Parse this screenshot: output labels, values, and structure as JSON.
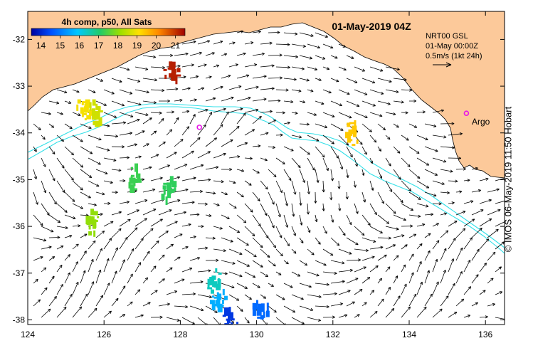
{
  "title": "01-May-2019 04Z",
  "colorbar": {
    "label": "4h comp, p50, All Sats",
    "ticks": [
      "14",
      "15",
      "16",
      "17",
      "18",
      "19",
      "20",
      "21"
    ],
    "range": [
      13.5,
      21.5
    ]
  },
  "legend": {
    "line1": "NRT00 GSL",
    "line2": "01-May 00:00Z",
    "line3": "0.5m/s (1kt 24h)"
  },
  "argo_label": "Argo",
  "credit": "© IMOS 06-May-2019 11:50 Hobart",
  "x_axis": {
    "ticks": [
      "124",
      "126",
      "128",
      "130",
      "132",
      "134",
      "136"
    ],
    "values": [
      124,
      126,
      128,
      130,
      132,
      134,
      136
    ],
    "min": 124,
    "max": 136.5
  },
  "y_axis": {
    "ticks": [
      "-32",
      "-33",
      "-34",
      "-35",
      "-36",
      "-37",
      "-38"
    ],
    "values": [
      -32,
      -33,
      -34,
      -35,
      -36,
      -37,
      -38
    ],
    "min": -38.1,
    "max": -31.4
  },
  "argo_floats": [
    {
      "lon": 128.5,
      "lat": -33.88
    },
    {
      "lon": 135.5,
      "lat": -33.58
    }
  ],
  "sst_patches": [
    {
      "lon": 127.8,
      "lat": -32.7,
      "value": 21.2
    },
    {
      "lon": 125.5,
      "lat": -33.5,
      "value": 19.0
    },
    {
      "lon": 125.8,
      "lat": -33.6,
      "value": 18.6
    },
    {
      "lon": 126.8,
      "lat": -35.0,
      "value": 17.3
    },
    {
      "lon": 128.9,
      "lat": -37.2,
      "value": 16.4
    },
    {
      "lon": 129.0,
      "lat": -37.6,
      "value": 15.6
    },
    {
      "lon": 130.1,
      "lat": -37.8,
      "value": 14.8
    },
    {
      "lon": 129.3,
      "lat": -38.0,
      "value": 14.2
    },
    {
      "lon": 132.5,
      "lat": -34.0,
      "value": 19.4
    },
    {
      "lon": 125.7,
      "lat": -35.9,
      "value": 18.0
    },
    {
      "lon": 127.7,
      "lat": -35.2,
      "value": 17.2
    }
  ],
  "colors": {
    "land": "#fcc99a",
    "shelf_line": "#33e0e8",
    "argo": "#e814e8",
    "text": "#000000"
  }
}
